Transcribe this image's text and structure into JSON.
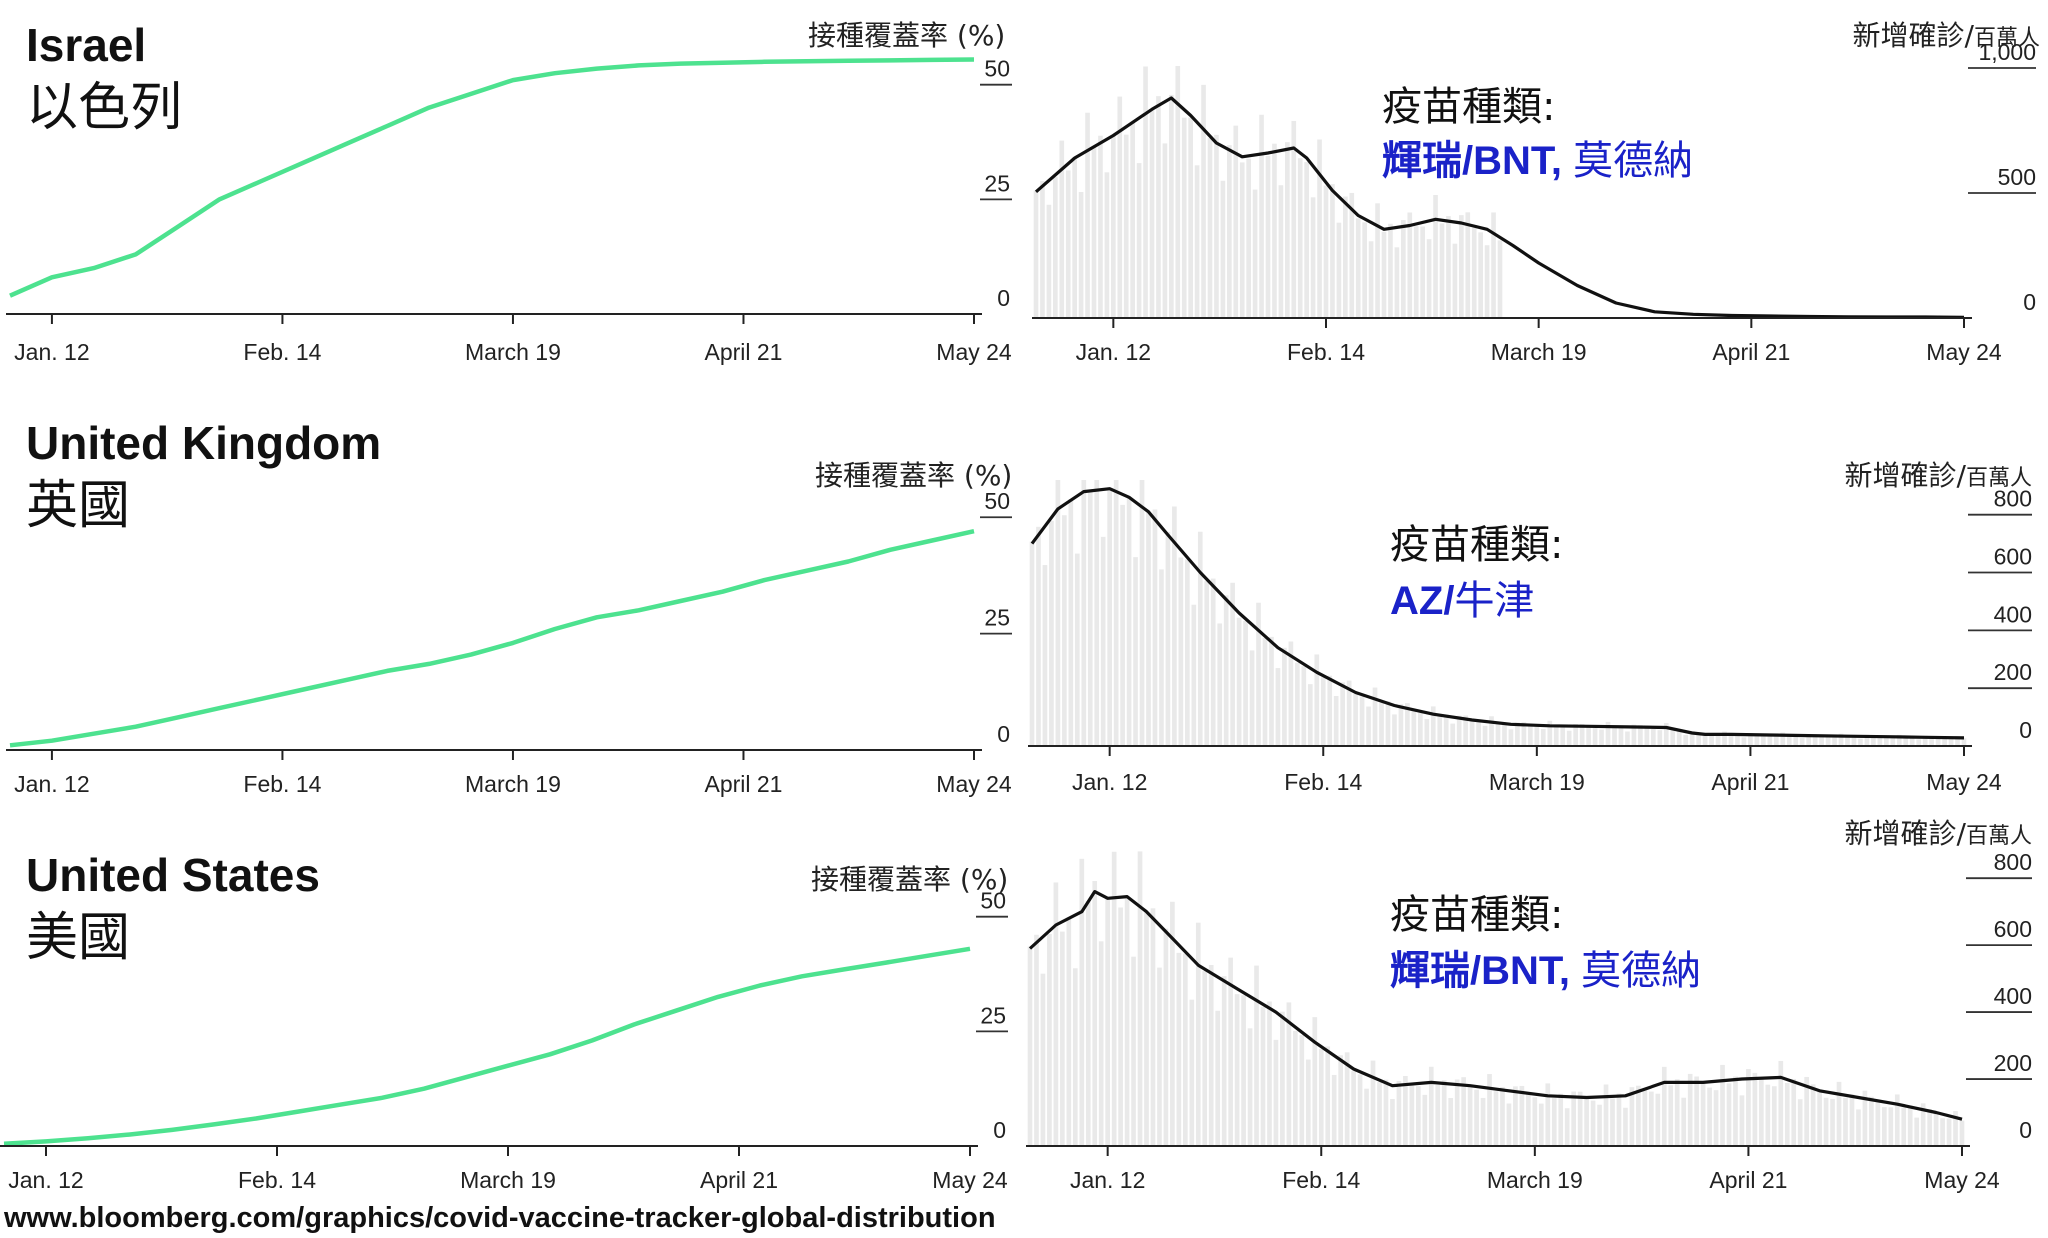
{
  "source": "www.bloomberg.com/graphics/covid-vaccine-tracker-global-distribution",
  "left_axis_title": "接種覆蓋率 (%)",
  "right_axis_title_main": "新增確診/",
  "right_axis_title_unit": "百萬人",
  "vaccine_heading": "疫苗種類:",
  "x_ticks": [
    "Jan. 12",
    "Feb. 14",
    "March 19",
    "April 21",
    "May 24"
  ],
  "countries": [
    {
      "name_en": "Israel",
      "name_zh": "以色列",
      "vaccine_bold": "輝瑞/BNT,",
      "vaccine_rest": " 莫德納",
      "colors": {
        "coverage_line": "#4de28f",
        "case_bars": "#e9e9e9",
        "avg_line": "#111111"
      }
    },
    {
      "name_en": "United Kingdom",
      "name_zh": "英國",
      "vaccine_bold": "AZ/",
      "vaccine_rest": "牛津",
      "colors": {
        "coverage_line": "#4de28f",
        "case_bars": "#e9e9e9",
        "avg_line": "#111111"
      }
    },
    {
      "name_en": "United States",
      "name_zh": "美國",
      "vaccine_bold": "輝瑞/BNT,",
      "vaccine_rest": " 莫德納",
      "colors": {
        "coverage_line": "#4de28f",
        "case_bars": "#e9e9e9",
        "avg_line": "#111111"
      }
    }
  ],
  "chart_data": [
    {
      "id": "israel-coverage",
      "type": "line",
      "ylabel": "接種覆蓋率 (%)",
      "ylim": [
        0,
        58
      ],
      "yticks": [
        "0",
        "25",
        "50"
      ],
      "ytick_values": [
        0,
        25,
        50
      ],
      "xlim": [
        -6,
        132
      ],
      "xtick_days": [
        0,
        33,
        66,
        99,
        132
      ],
      "series": [
        {
          "x": [
            -6,
            0,
            6,
            12,
            18,
            24,
            30,
            36,
            42,
            48,
            54,
            60,
            66,
            72,
            78,
            84,
            90,
            96,
            102,
            108,
            114,
            120,
            126,
            132
          ],
          "values": [
            4,
            8,
            10,
            13,
            19,
            25,
            29,
            33,
            37,
            41,
            45,
            48,
            51,
            52.5,
            53.5,
            54.2,
            54.6,
            54.8,
            55,
            55.1,
            55.2,
            55.3,
            55.4,
            55.5
          ]
        }
      ]
    },
    {
      "id": "israel-cases",
      "type": "bar",
      "ylabel": "新增確診/百萬人",
      "ylim": [
        0,
        1080
      ],
      "yticks": [
        "0",
        "500",
        "1,000"
      ],
      "ytick_values": [
        0,
        500,
        1000
      ],
      "xlim": [
        -12,
        132
      ],
      "xtick_days": [
        0,
        33,
        66,
        99,
        132
      ],
      "bar_range": [
        -12,
        60
      ],
      "avg_line": {
        "x": [
          -12,
          -6,
          0,
          6,
          9,
          12,
          16,
          20,
          24,
          28,
          30,
          34,
          38,
          42,
          46,
          50,
          54,
          58,
          62,
          66,
          72,
          78,
          84,
          90,
          96,
          102,
          108,
          114,
          120,
          126,
          132
        ],
        "values": [
          505,
          640,
          730,
          835,
          880,
          810,
          700,
          645,
          660,
          680,
          640,
          510,
          410,
          355,
          370,
          395,
          380,
          355,
          290,
          220,
          130,
          60,
          25,
          15,
          10,
          8,
          6,
          5,
          4,
          4,
          3
        ]
      }
    },
    {
      "id": "uk-coverage",
      "type": "line",
      "ylabel": "接種覆蓋率 (%)",
      "ylim": [
        0,
        58
      ],
      "yticks": [
        "0",
        "25",
        "50"
      ],
      "ytick_values": [
        0,
        25,
        50
      ],
      "xlim": [
        -6,
        132
      ],
      "xtick_days": [
        0,
        33,
        66,
        99,
        132
      ],
      "series": [
        {
          "x": [
            -6,
            0,
            6,
            12,
            18,
            24,
            30,
            36,
            42,
            48,
            54,
            60,
            66,
            72,
            78,
            84,
            90,
            96,
            102,
            108,
            114,
            120,
            126,
            132
          ],
          "values": [
            1,
            2,
            3.5,
            5,
            7,
            9,
            11,
            13,
            15,
            17,
            18.5,
            20.5,
            23,
            26,
            28.5,
            30,
            32,
            34,
            36.5,
            38.5,
            40.5,
            43,
            45,
            47
          ]
        }
      ]
    },
    {
      "id": "uk-cases",
      "type": "bar",
      "ylabel": "新增確診/百萬人",
      "ylim": [
        0,
        920
      ],
      "yticks": [
        "0",
        "200",
        "400",
        "600",
        "800"
      ],
      "ytick_values": [
        0,
        200,
        400,
        600,
        800
      ],
      "xlim": [
        -12,
        132
      ],
      "xtick_days": [
        0,
        33,
        66,
        99,
        132
      ],
      "bar_range": [
        -12,
        132
      ],
      "avg_line": {
        "x": [
          -12,
          -8,
          -4,
          0,
          3,
          6,
          9,
          14,
          20,
          26,
          32,
          38,
          44,
          50,
          56,
          62,
          68,
          74,
          80,
          86,
          90,
          92,
          96,
          102,
          108,
          114,
          120,
          126,
          132
        ],
        "values": [
          700,
          820,
          880,
          890,
          860,
          810,
          730,
          600,
          460,
          340,
          255,
          185,
          140,
          110,
          90,
          75,
          70,
          68,
          66,
          64,
          45,
          40,
          40,
          38,
          36,
          34,
          32,
          30,
          28
        ]
      }
    },
    {
      "id": "us-coverage",
      "type": "line",
      "ylabel": "接種覆蓋率 (%)",
      "ylim": [
        0,
        58
      ],
      "yticks": [
        "0",
        "25",
        "50"
      ],
      "ytick_values": [
        0,
        25,
        50
      ],
      "xlim": [
        -6,
        132
      ],
      "xtick_days": [
        0,
        33,
        66,
        99,
        132
      ],
      "series": [
        {
          "x": [
            -6,
            0,
            6,
            12,
            18,
            24,
            30,
            36,
            42,
            48,
            54,
            60,
            66,
            72,
            78,
            84,
            90,
            96,
            102,
            108,
            114,
            120,
            126,
            132
          ],
          "values": [
            0.5,
            1,
            1.7,
            2.5,
            3.5,
            4.7,
            6,
            7.5,
            9,
            10.5,
            12.5,
            15,
            17.5,
            20,
            23,
            26.5,
            29.5,
            32.5,
            35,
            37,
            38.5,
            40,
            41.5,
            43
          ]
        }
      ]
    },
    {
      "id": "us-cases",
      "type": "bar",
      "ylabel": "新增確診/百萬人",
      "ylim": [
        0,
        920
      ],
      "yticks": [
        "0",
        "200",
        "400",
        "600",
        "800"
      ],
      "ytick_values": [
        0,
        200,
        400,
        600,
        800
      ],
      "xlim": [
        -12,
        132
      ],
      "xtick_days": [
        0,
        33,
        66,
        99,
        132
      ],
      "bar_range": [
        -12,
        132
      ],
      "avg_line": {
        "x": [
          -12,
          -8,
          -4,
          -2,
          0,
          3,
          6,
          10,
          14,
          20,
          26,
          32,
          38,
          44,
          50,
          56,
          62,
          68,
          74,
          80,
          86,
          92,
          98,
          104,
          110,
          116,
          122,
          128,
          132
        ],
        "values": [
          590,
          660,
          700,
          760,
          740,
          745,
          700,
          620,
          540,
          470,
          400,
          310,
          230,
          180,
          190,
          180,
          165,
          150,
          145,
          150,
          190,
          190,
          200,
          205,
          165,
          145,
          125,
          100,
          80
        ]
      }
    }
  ]
}
